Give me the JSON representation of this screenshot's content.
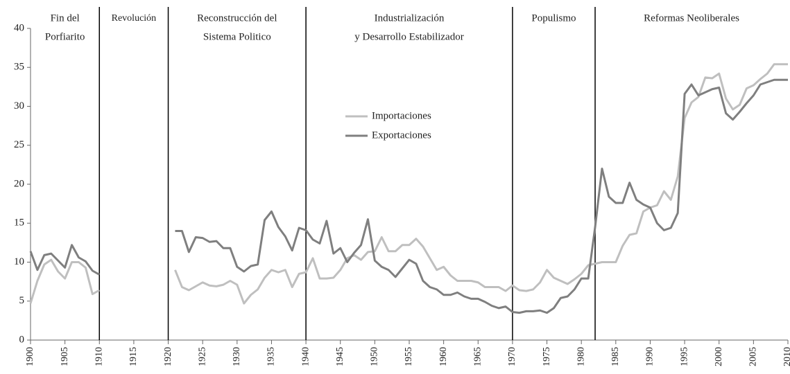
{
  "chart_data": {
    "type": "line",
    "x": [
      1900,
      1901,
      1902,
      1903,
      1904,
      1905,
      1906,
      1907,
      1908,
      1909,
      1910,
      1911,
      1912,
      1913,
      1914,
      1915,
      1916,
      1917,
      1918,
      1919,
      1920,
      1921,
      1922,
      1923,
      1924,
      1925,
      1926,
      1927,
      1928,
      1929,
      1930,
      1931,
      1932,
      1933,
      1934,
      1935,
      1936,
      1937,
      1938,
      1939,
      1940,
      1941,
      1942,
      1943,
      1944,
      1945,
      1946,
      1947,
      1948,
      1949,
      1950,
      1951,
      1952,
      1953,
      1954,
      1955,
      1956,
      1957,
      1958,
      1959,
      1960,
      1961,
      1962,
      1963,
      1964,
      1965,
      1966,
      1967,
      1968,
      1969,
      1970,
      1971,
      1972,
      1973,
      1974,
      1975,
      1976,
      1977,
      1978,
      1979,
      1980,
      1981,
      1982,
      1983,
      1984,
      1985,
      1986,
      1987,
      1988,
      1989,
      1990,
      1991,
      1992,
      1993,
      1994,
      1995,
      1996,
      1997,
      1998,
      1999,
      2000,
      2001,
      2002,
      2003,
      2004,
      2005,
      2006,
      2007,
      2008,
      2009,
      2010
    ],
    "series": [
      {
        "name": "Importaciones",
        "color": "#bfbfbf",
        "values": [
          4.7,
          7.6,
          9.7,
          10.3,
          8.8,
          7.9,
          10.0,
          10.0,
          9.3,
          5.9,
          6.4,
          null,
          null,
          null,
          null,
          null,
          null,
          null,
          null,
          null,
          null,
          9.0,
          6.8,
          6.4,
          6.9,
          7.4,
          7.0,
          6.9,
          7.1,
          7.6,
          7.1,
          4.7,
          5.8,
          6.5,
          8.0,
          9.0,
          8.7,
          9.0,
          6.8,
          8.5,
          8.7,
          10.5,
          7.9,
          7.9,
          8.0,
          9.0,
          10.5,
          10.9,
          10.3,
          11.3,
          11.4,
          13.2,
          11.4,
          11.4,
          12.2,
          12.2,
          13.0,
          12.0,
          10.5,
          9.0,
          9.4,
          8.3,
          7.6,
          7.6,
          7.6,
          7.4,
          6.8,
          6.8,
          6.8,
          6.3,
          7.0,
          6.4,
          6.3,
          6.5,
          7.4,
          9.0,
          8.0,
          7.6,
          7.2,
          7.8,
          8.5,
          9.6,
          9.8,
          10.0,
          10.0,
          10.0,
          12.1,
          13.5,
          13.7,
          16.5,
          17.0,
          17.3,
          19.1,
          18.0,
          21.0,
          28.5,
          30.5,
          31.2,
          33.7,
          33.6,
          34.2,
          31.0,
          29.6,
          30.2,
          32.3,
          32.7,
          33.5,
          34.2,
          35.4,
          35.4,
          35.4
        ]
      },
      {
        "name": "Exportaciones",
        "color": "#7f7f7f",
        "values": [
          11.4,
          9.0,
          10.9,
          11.1,
          10.2,
          9.3,
          12.2,
          10.6,
          10.1,
          8.9,
          8.4,
          null,
          null,
          null,
          null,
          null,
          null,
          null,
          null,
          null,
          null,
          14.0,
          14.0,
          11.3,
          13.2,
          13.1,
          12.6,
          12.7,
          11.8,
          11.8,
          9.4,
          8.8,
          9.5,
          9.7,
          15.4,
          16.5,
          14.5,
          13.3,
          11.5,
          14.4,
          14.1,
          12.9,
          12.4,
          15.3,
          11.1,
          11.8,
          10.0,
          11.2,
          12.2,
          15.5,
          10.2,
          9.4,
          9.0,
          8.1,
          9.2,
          10.3,
          9.8,
          7.6,
          6.8,
          6.5,
          5.8,
          5.8,
          6.1,
          5.6,
          5.3,
          5.3,
          4.9,
          4.4,
          4.1,
          4.3,
          3.6,
          3.5,
          3.7,
          3.7,
          3.8,
          3.5,
          4.1,
          5.4,
          5.6,
          6.5,
          7.9,
          7.9,
          14.5,
          22.0,
          18.4,
          17.6,
          17.6,
          20.2,
          18.0,
          17.4,
          17.0,
          15.0,
          14.1,
          14.4,
          16.3,
          31.6,
          32.8,
          31.4,
          31.8,
          32.2,
          32.4,
          29.1,
          28.3,
          29.3,
          30.4,
          31.4,
          32.8,
          33.1,
          33.4,
          33.4,
          33.4
        ]
      }
    ],
    "xlim": [
      1900,
      2010
    ],
    "xticks": [
      1900,
      1905,
      1910,
      1915,
      1920,
      1925,
      1930,
      1935,
      1940,
      1945,
      1950,
      1955,
      1960,
      1965,
      1970,
      1975,
      1980,
      1985,
      1990,
      1995,
      2000,
      2005,
      2010
    ],
    "ylim": [
      0,
      40
    ],
    "yticks": [
      0,
      5,
      10,
      15,
      20,
      25,
      30,
      35,
      40
    ],
    "dividers": [
      1910,
      1920,
      1940,
      1970,
      1982
    ],
    "periods": [
      [
        "Fin del",
        "Porfiarito"
      ],
      [
        "Revolución"
      ],
      [
        "Reconstrucción del",
        "Sistema Politico"
      ],
      [
        "Industrialización",
        "y Desarrollo Estabilizador"
      ],
      [
        "Populismo"
      ],
      [
        "Reformas Neoliberales"
      ]
    ],
    "legend": "center"
  }
}
